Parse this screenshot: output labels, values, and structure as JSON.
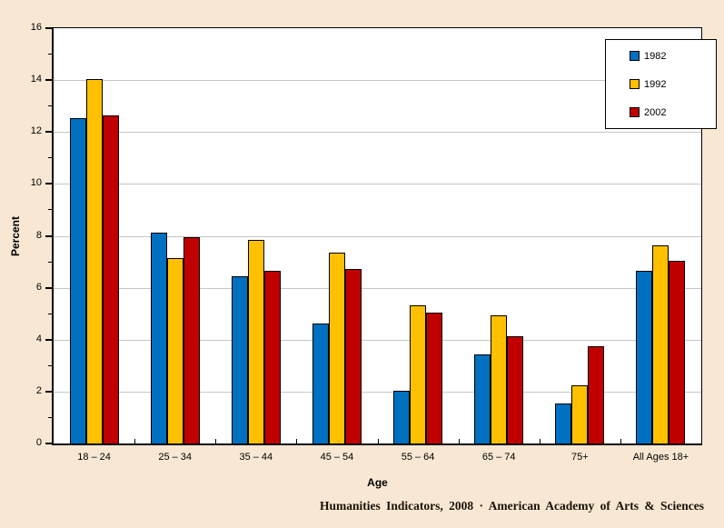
{
  "chart_data": {
    "type": "bar",
    "title": "",
    "categories": [
      "18 – 24",
      "25 – 34",
      "35 – 44",
      "45 – 54",
      "55 – 64",
      "65 – 74",
      "75+",
      "All Ages 18+"
    ],
    "series": [
      {
        "name": "1982",
        "color": "#0070C0",
        "values": [
          12.5,
          8.1,
          6.4,
          4.6,
          2.0,
          3.4,
          1.5,
          6.6
        ]
      },
      {
        "name": "1992",
        "color": "#FFC000",
        "values": [
          14.0,
          7.1,
          7.8,
          7.3,
          5.3,
          4.9,
          2.2,
          7.6
        ]
      },
      {
        "name": "2002",
        "color": "#C00000",
        "values": [
          12.6,
          7.9,
          6.6,
          6.7,
          5.0,
          4.1,
          3.7,
          7.0
        ]
      }
    ],
    "xlabel": "Age",
    "ylabel": "Percent",
    "ylim": [
      0,
      16
    ],
    "ytick_major_step": 2,
    "ytick_minor_step": 1,
    "grid": true,
    "legend_position": "top-right",
    "legend_entries": [
      "1982",
      "1992",
      "2002"
    ]
  },
  "footer": {
    "credit": "Humanities Indicators, 2008 · American Academy of Arts & Sciences"
  },
  "colors": {
    "background": "#F8E8D3",
    "plot_background": "#FFFFFF",
    "gridline": "#C6C6C6",
    "axis": "#000000",
    "series_1982": "#0070C0",
    "series_1992": "#FFC000",
    "series_2002": "#C00000"
  }
}
